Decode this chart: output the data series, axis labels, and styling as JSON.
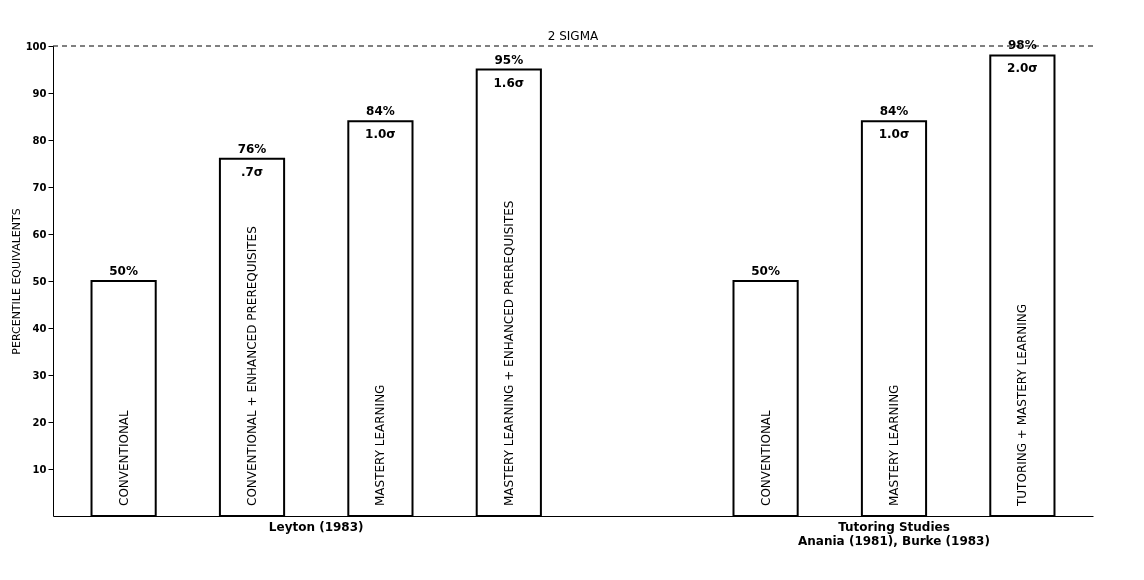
{
  "chart_data": {
    "type": "bar",
    "ylabel": "PERCENTILE EQUIVALENTS",
    "categories": [
      "CONVENTIONAL",
      "CONVENTIONAL + ENHANCED PREREQUISITES",
      "MASTERY LEARNING",
      "MASTERY LEARNING + ENHANCED PREREQUISITES",
      null,
      "CONVENTIONAL",
      "MASTERY LEARNING",
      "TUTORING + MASTERY LEARNING"
    ],
    "values": [
      50,
      76,
      84,
      95,
      null,
      50,
      84,
      98
    ],
    "value_labels": [
      "50%",
      "76%",
      "84%",
      "95%",
      null,
      "50%",
      "84%",
      "98%"
    ],
    "color": "#ffffff",
    "ylim": [
      0,
      100
    ],
    "yticks": [
      10,
      20,
      30,
      40,
      50,
      60,
      70,
      80,
      90,
      100
    ],
    "tick_labels": "y",
    "grid": false,
    "ref_lines": [
      {
        "axis": "y",
        "value": 100,
        "label": "2 SIGMA",
        "line_style": "dashed"
      }
    ],
    "annotations": [
      ".7σ",
      "1.0σ",
      "1.6σ",
      "1.0σ",
      "2.0σ",
      "Leyton (1983)",
      "Tutoring Studies",
      "Anania (1981), Burke (1983)"
    ]
  }
}
